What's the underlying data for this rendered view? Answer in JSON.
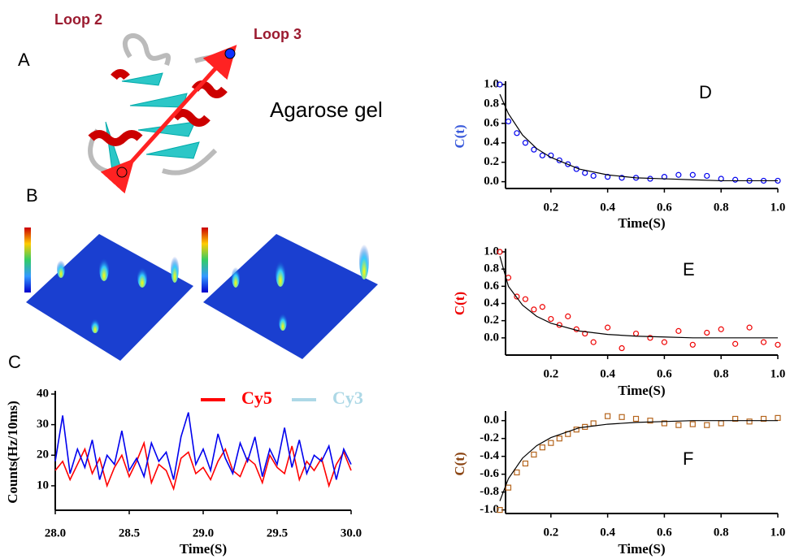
{
  "figure": {
    "loop_2": "Loop 2",
    "loop_3": "Loop 3",
    "panel_a": "A",
    "gel": "Agarose gel",
    "panel_b": "B",
    "panel_c": "C",
    "panel_d": "D",
    "panel_e": "E",
    "panel_f": "F"
  },
  "chart_data": [
    {
      "type": "line",
      "xlabel": "Time(S)",
      "ylabel": "Counts(Hz/10ms)",
      "x": [
        28.0,
        28.05,
        28.1,
        28.15,
        28.2,
        28.25,
        28.3,
        28.35,
        28.4,
        28.45,
        28.5,
        28.55,
        28.6,
        28.65,
        28.7,
        28.75,
        28.8,
        28.85,
        28.9,
        28.95,
        29.0,
        29.05,
        29.1,
        29.15,
        29.2,
        29.25,
        29.3,
        29.35,
        29.4,
        29.45,
        29.5,
        29.55,
        29.6,
        29.65,
        29.7,
        29.75,
        29.8,
        29.85,
        29.9,
        29.95,
        30.0
      ],
      "xlim": [
        28,
        30
      ],
      "xticks": [
        {
          "value": 28,
          "label": "28.0"
        },
        28.5,
        {
          "value": 29,
          "label": "29.0"
        },
        29.5,
        {
          "value": 30,
          "label": "30.0"
        }
      ],
      "ylim": [
        2,
        40
      ],
      "yticks": [
        10,
        20,
        30,
        40
      ],
      "legend": "top-right",
      "series": [
        {
          "name": "Cy5",
          "color": "#ff0000",
          "style": "line",
          "values": [
            15,
            18,
            12,
            17,
            22,
            14,
            19,
            10,
            16,
            20,
            13,
            18,
            24,
            11,
            17,
            15,
            9,
            19,
            21,
            14,
            16,
            12,
            18,
            22,
            15,
            13,
            19,
            17,
            11,
            20,
            16,
            14,
            23,
            12,
            18,
            15,
            19,
            10,
            17,
            21,
            15
          ]
        },
        {
          "name": "Cy3",
          "color": "#0000ee",
          "legend_color": "#add8e6",
          "style": "line",
          "values": [
            18,
            33,
            14,
            22,
            16,
            25,
            12,
            20,
            17,
            28,
            15,
            19,
            13,
            24,
            18,
            21,
            12,
            26,
            34,
            17,
            22,
            15,
            27,
            19,
            14,
            24,
            18,
            26,
            13,
            22,
            17,
            29,
            16,
            25,
            14,
            20,
            18,
            23,
            12,
            22,
            17
          ]
        }
      ]
    },
    {
      "type": "scatter",
      "xlabel": "Time(S)",
      "ylabel": "C(t)",
      "ylabel_color": "#3b5bdb",
      "xlim": [
        0.04,
        1.0
      ],
      "xticks": [
        0.2,
        0.4,
        0.6,
        0.8,
        {
          "value": 1,
          "label": "1.0"
        }
      ],
      "ylim": [
        -0.07,
        1.0
      ],
      "yticks": [
        {
          "value": 0,
          "label": "0.0"
        },
        0.2,
        0.4,
        0.6,
        0.8,
        {
          "value": 1,
          "label": "1.0"
        }
      ],
      "series": [
        {
          "color": "#0000ee",
          "style": "markers",
          "marker": "circle",
          "x": [
            0.02,
            0.05,
            0.08,
            0.11,
            0.14,
            0.17,
            0.2,
            0.23,
            0.26,
            0.29,
            0.32,
            0.35,
            0.4,
            0.45,
            0.5,
            0.55,
            0.6,
            0.65,
            0.7,
            0.75,
            0.8,
            0.85,
            0.9,
            0.95,
            1.0
          ],
          "values": [
            1.0,
            0.62,
            0.5,
            0.4,
            0.33,
            0.27,
            0.27,
            0.22,
            0.18,
            0.13,
            0.09,
            0.06,
            0.05,
            0.04,
            0.04,
            0.03,
            0.05,
            0.07,
            0.07,
            0.06,
            0.03,
            0.02,
            0.01,
            0.01,
            0.01
          ]
        },
        {
          "color": "#000000",
          "style": "line",
          "x": [
            0.02,
            0.05,
            0.1,
            0.15,
            0.2,
            0.3,
            0.4,
            0.5,
            0.6,
            0.7,
            0.8,
            0.9,
            1.0
          ],
          "values": [
            0.9,
            0.7,
            0.48,
            0.34,
            0.25,
            0.13,
            0.07,
            0.04,
            0.03,
            0.02,
            0.01,
            0.01,
            0.01
          ]
        }
      ]
    },
    {
      "type": "scatter",
      "xlabel": "Time(S)",
      "ylabel": "C(t)",
      "ylabel_color": "#ee0000",
      "xlim": [
        0.04,
        1.0
      ],
      "xticks": [
        0.2,
        0.4,
        0.6,
        0.8,
        {
          "value": 1,
          "label": "1.0"
        }
      ],
      "ylim": [
        -0.2,
        1.0
      ],
      "yticks": [
        {
          "value": 0,
          "label": "0.0"
        },
        0.2,
        0.4,
        0.6,
        0.8,
        {
          "value": 1,
          "label": "1.0"
        }
      ],
      "series": [
        {
          "color": "#ee0000",
          "style": "markers",
          "marker": "circle",
          "x": [
            0.02,
            0.05,
            0.08,
            0.11,
            0.14,
            0.17,
            0.2,
            0.23,
            0.26,
            0.29,
            0.32,
            0.35,
            0.4,
            0.45,
            0.5,
            0.55,
            0.6,
            0.65,
            0.7,
            0.75,
            0.8,
            0.85,
            0.9,
            0.95,
            1.0
          ],
          "values": [
            1.0,
            0.7,
            0.48,
            0.45,
            0.33,
            0.36,
            0.22,
            0.15,
            0.25,
            0.1,
            0.05,
            -0.05,
            0.12,
            -0.12,
            0.05,
            0.0,
            -0.05,
            0.08,
            -0.08,
            0.06,
            0.1,
            -0.07,
            0.12,
            -0.05,
            -0.08
          ]
        },
        {
          "color": "#000000",
          "style": "line",
          "x": [
            0.02,
            0.05,
            0.1,
            0.15,
            0.2,
            0.3,
            0.4,
            0.5,
            0.6,
            0.7,
            0.8,
            0.9,
            1.0
          ],
          "values": [
            0.95,
            0.6,
            0.38,
            0.25,
            0.17,
            0.08,
            0.04,
            0.02,
            0.01,
            0.0,
            0.0,
            0.0,
            0.0
          ]
        }
      ]
    },
    {
      "type": "scatter",
      "xlabel": "Time(S)",
      "ylabel": "C(t)",
      "ylabel_color": "#8b4513",
      "xlim": [
        0.04,
        1.0
      ],
      "xticks": [
        0.2,
        0.4,
        0.6,
        0.8,
        {
          "value": 1,
          "label": "1.0"
        }
      ],
      "ylim": [
        -1.04,
        0.07
      ],
      "yticks": [
        {
          "value": 0,
          "label": "0.0"
        },
        -0.2,
        -0.4,
        -0.6,
        -0.8,
        {
          "value": -1,
          "label": "-1.0"
        }
      ],
      "series": [
        {
          "color": "#b5651d",
          "style": "markers",
          "marker": "square",
          "x": [
            0.02,
            0.05,
            0.08,
            0.11,
            0.14,
            0.17,
            0.2,
            0.23,
            0.26,
            0.29,
            0.32,
            0.35,
            0.4,
            0.45,
            0.5,
            0.55,
            0.6,
            0.65,
            0.7,
            0.75,
            0.8,
            0.85,
            0.9,
            0.95,
            1.0
          ],
          "values": [
            -1.0,
            -0.75,
            -0.58,
            -0.48,
            -0.38,
            -0.3,
            -0.25,
            -0.2,
            -0.15,
            -0.1,
            -0.07,
            -0.03,
            0.05,
            0.04,
            0.02,
            0.0,
            -0.03,
            -0.05,
            -0.04,
            -0.05,
            -0.03,
            0.02,
            -0.01,
            0.02,
            0.03
          ]
        },
        {
          "color": "#000000",
          "style": "line",
          "x": [
            0.02,
            0.05,
            0.1,
            0.15,
            0.2,
            0.3,
            0.4,
            0.5,
            0.6,
            0.7,
            0.8,
            0.9,
            1.0
          ],
          "values": [
            -0.9,
            -0.65,
            -0.42,
            -0.28,
            -0.19,
            -0.08,
            -0.04,
            -0.02,
            -0.01,
            0,
            0,
            0,
            0
          ]
        }
      ]
    }
  ]
}
